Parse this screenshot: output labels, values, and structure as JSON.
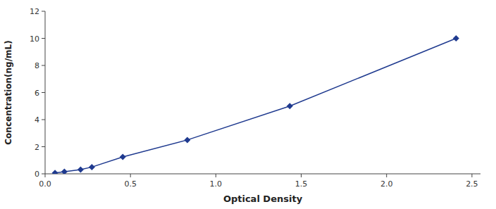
{
  "chart_data": {
    "type": "line",
    "xlabel": "Optical Density",
    "ylabel": "Concentration(ng/mL)",
    "x": [
      0.058,
      0.113,
      0.208,
      0.274,
      0.455,
      0.833,
      1.433,
      2.407
    ],
    "values": [
      0.063,
      0.156,
      0.313,
      0.5,
      1.25,
      2.5,
      5.0,
      10.0
    ],
    "color": "#1f3a8f",
    "marker": "diamond",
    "xlim": [
      0,
      2.55
    ],
    "ylim": [
      0,
      12
    ],
    "xticks": [
      {
        "value": 0,
        "label": "0.0"
      },
      0.5,
      {
        "value": 1.0,
        "label": "1.0"
      },
      1.5,
      {
        "value": 2.0,
        "label": "2.0"
      },
      2.5
    ],
    "yticks": [
      0,
      2,
      4,
      6,
      8,
      10,
      12
    ],
    "grid": false
  }
}
